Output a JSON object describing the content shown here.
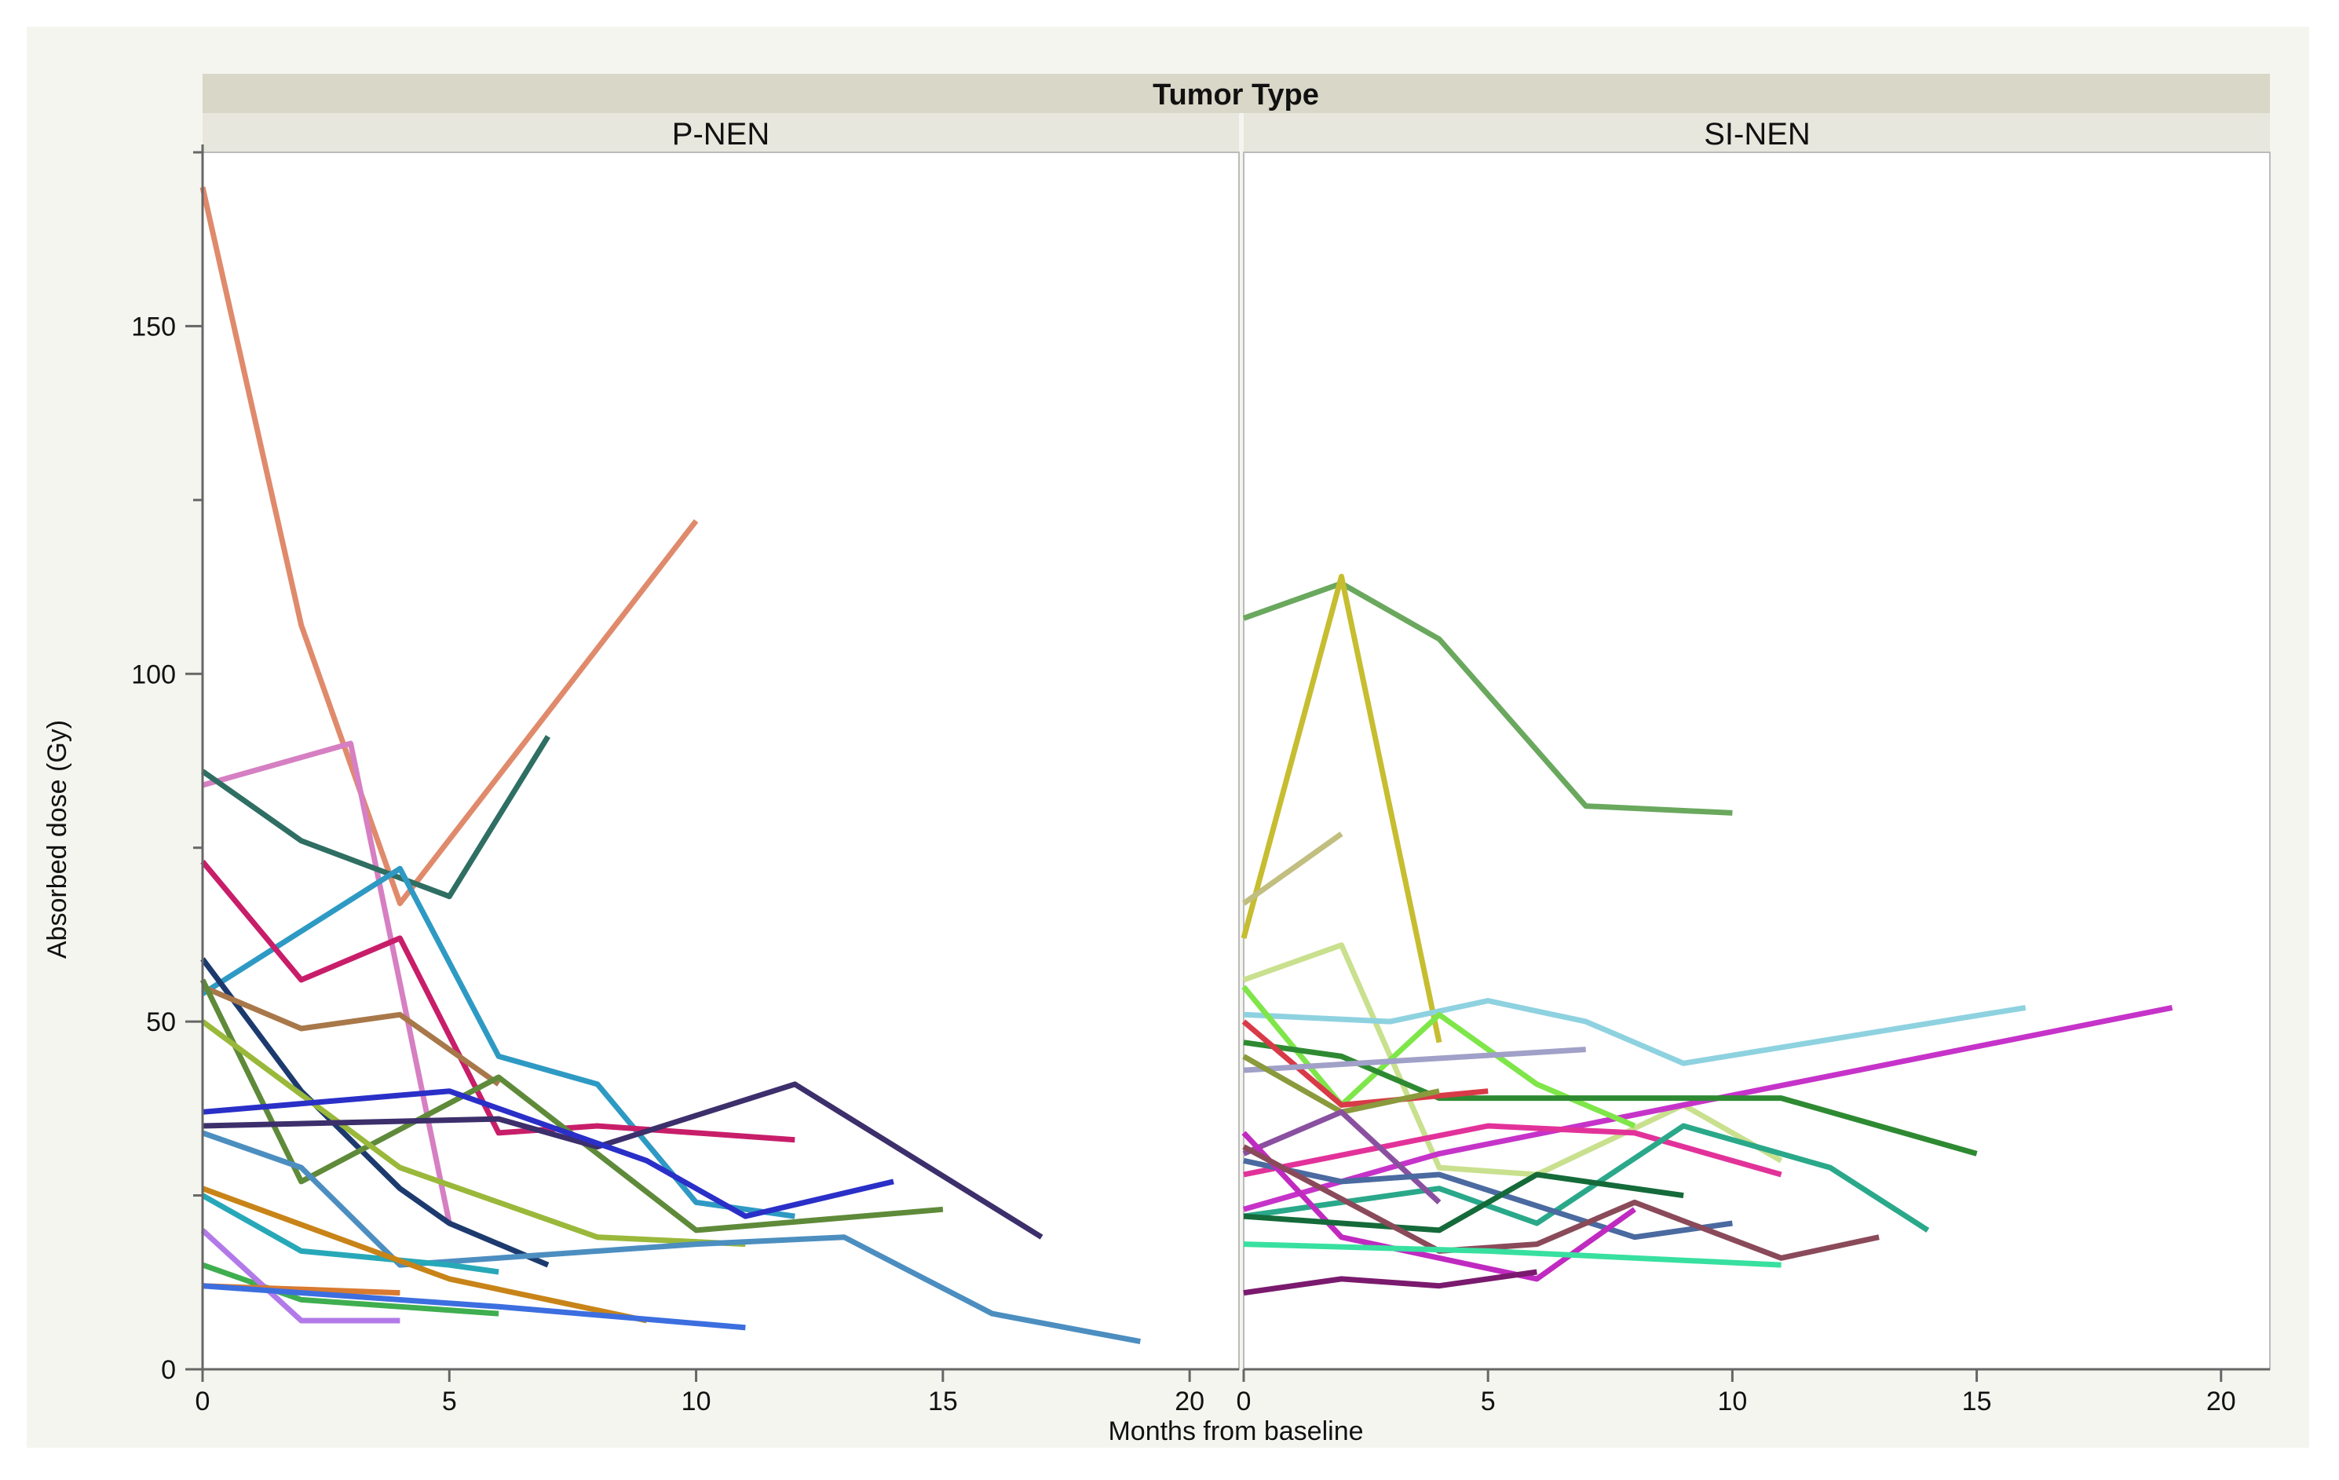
{
  "chart_data": {
    "type": "line",
    "title": "Tumor Type",
    "xlabel": "Months from baseline",
    "ylabel": "Absorbed dose (Gy)",
    "xlim": [
      0,
      21
    ],
    "ylim": [
      0,
      175
    ],
    "x_ticks": [
      0,
      5,
      10,
      15,
      20
    ],
    "y_ticks": [
      0,
      50,
      100,
      150
    ],
    "panels": [
      {
        "name": "P-NEN",
        "series": [
          {
            "color": "#e08a6c",
            "points": [
              [
                0,
                170
              ],
              [
                2,
                107
              ],
              [
                4,
                67
              ],
              [
                10,
                122
              ]
            ]
          },
          {
            "color": "#d67fc2",
            "points": [
              [
                0,
                84
              ],
              [
                3,
                90
              ],
              [
                5,
                21
              ]
            ]
          },
          {
            "color": "#2f6e63",
            "points": [
              [
                0,
                86
              ],
              [
                2,
                76
              ],
              [
                5,
                68
              ],
              [
                7,
                91
              ]
            ]
          },
          {
            "color": "#2e9ac4",
            "points": [
              [
                0,
                54
              ],
              [
                4,
                72
              ],
              [
                6,
                45
              ],
              [
                8,
                41
              ],
              [
                10,
                24
              ],
              [
                12,
                22
              ]
            ]
          },
          {
            "color": "#c81e6a",
            "points": [
              [
                0,
                73
              ],
              [
                2,
                56
              ],
              [
                4,
                62
              ],
              [
                6,
                34
              ],
              [
                8,
                35
              ],
              [
                12,
                33
              ]
            ]
          },
          {
            "color": "#1c3a6e",
            "points": [
              [
                0,
                59
              ],
              [
                2,
                40
              ],
              [
                4,
                26
              ],
              [
                5,
                21
              ],
              [
                7,
                15
              ]
            ]
          },
          {
            "color": "#a8784a",
            "points": [
              [
                0,
                55
              ],
              [
                2,
                49
              ],
              [
                4,
                51
              ],
              [
                6,
                41
              ]
            ]
          },
          {
            "color": "#5f8a3a",
            "points": [
              [
                0,
                56
              ],
              [
                2,
                27
              ],
              [
                6,
                42
              ],
              [
                10,
                20
              ],
              [
                15,
                23
              ]
            ]
          },
          {
            "color": "#9ab83a",
            "points": [
              [
                0,
                50
              ],
              [
                4,
                29
              ],
              [
                8,
                19
              ],
              [
                11,
                18
              ]
            ]
          },
          {
            "color": "#3c2f6b",
            "points": [
              [
                0,
                35
              ],
              [
                6,
                36
              ],
              [
                8,
                32
              ],
              [
                12,
                41
              ],
              [
                17,
                19
              ]
            ]
          },
          {
            "color": "#2a2fc8",
            "points": [
              [
                0,
                37
              ],
              [
                5,
                40
              ],
              [
                9,
                30
              ],
              [
                11,
                22
              ],
              [
                14,
                27
              ]
            ]
          },
          {
            "color": "#4c8ec0",
            "points": [
              [
                0,
                34
              ],
              [
                2,
                29
              ],
              [
                4,
                15
              ],
              [
                10,
                18
              ],
              [
                13,
                19
              ],
              [
                16,
                8
              ],
              [
                19,
                4
              ]
            ]
          },
          {
            "color": "#27a8b8",
            "points": [
              [
                0,
                25
              ],
              [
                2,
                17
              ],
              [
                5,
                15
              ],
              [
                6,
                14
              ]
            ]
          },
          {
            "color": "#c88418",
            "points": [
              [
                0,
                26
              ],
              [
                5,
                13
              ],
              [
                9,
                7
              ]
            ]
          },
          {
            "color": "#3fae50",
            "points": [
              [
                0,
                15
              ],
              [
                2,
                10
              ],
              [
                6,
                8
              ]
            ]
          },
          {
            "color": "#b27ae8",
            "points": [
              [
                0,
                20
              ],
              [
                2,
                7
              ],
              [
                4,
                7
              ]
            ]
          },
          {
            "color": "#d87a30",
            "points": [
              [
                0,
                12
              ],
              [
                4,
                11
              ]
            ]
          },
          {
            "color": "#3c6ee0",
            "points": [
              [
                0,
                12
              ],
              [
                6,
                9
              ],
              [
                11,
                6
              ]
            ]
          }
        ]
      },
      {
        "name": "SI-NEN",
        "series": [
          {
            "color": "#6aa85e",
            "points": [
              [
                0,
                108
              ],
              [
                2,
                113
              ],
              [
                4,
                105
              ],
              [
                7,
                81
              ],
              [
                10,
                80
              ]
            ]
          },
          {
            "color": "#c6bd30",
            "points": [
              [
                0,
                62
              ],
              [
                2,
                114
              ],
              [
                4,
                47
              ]
            ]
          },
          {
            "color": "#c2be80",
            "points": [
              [
                0,
                67
              ],
              [
                2,
                77
              ]
            ]
          },
          {
            "color": "#c9e08e",
            "points": [
              [
                0,
                56
              ],
              [
                2,
                61
              ],
              [
                4,
                29
              ],
              [
                6,
                28
              ],
              [
                9,
                38
              ],
              [
                11,
                30
              ]
            ]
          },
          {
            "color": "#8ed2e0",
            "points": [
              [
                0,
                51
              ],
              [
                3,
                50
              ],
              [
                5,
                53
              ],
              [
                7,
                50
              ],
              [
                9,
                44
              ],
              [
                16,
                52
              ]
            ]
          },
          {
            "color": "#c633c9",
            "points": [
              [
                0,
                23
              ],
              [
                4,
                31
              ],
              [
                19,
                52
              ]
            ]
          },
          {
            "color": "#7fe64a",
            "points": [
              [
                0,
                55
              ],
              [
                2,
                38
              ],
              [
                4,
                51
              ],
              [
                6,
                41
              ],
              [
                8,
                35
              ]
            ]
          },
          {
            "color": "#2e8a32",
            "points": [
              [
                0,
                47
              ],
              [
                2,
                45
              ],
              [
                4,
                39
              ],
              [
                11,
                39
              ],
              [
                15,
                31
              ]
            ]
          },
          {
            "color": "#d83a48",
            "points": [
              [
                0,
                50
              ],
              [
                2,
                38
              ],
              [
                5,
                40
              ]
            ]
          },
          {
            "color": "#a0a0c8",
            "points": [
              [
                0,
                43
              ],
              [
                7,
                46
              ]
            ]
          },
          {
            "color": "#8a9a3c",
            "points": [
              [
                0,
                45
              ],
              [
                2,
                37
              ],
              [
                4,
                40
              ]
            ]
          },
          {
            "color": "#e2329a",
            "points": [
              [
                0,
                28
              ],
              [
                5,
                35
              ],
              [
                8,
                34
              ],
              [
                11,
                28
              ]
            ]
          },
          {
            "color": "#2aa88a",
            "points": [
              [
                0,
                22
              ],
              [
                4,
                26
              ],
              [
                6,
                21
              ],
              [
                9,
                35
              ],
              [
                12,
                29
              ],
              [
                14,
                20
              ]
            ]
          },
          {
            "color": "#8a50a0",
            "points": [
              [
                0,
                31
              ],
              [
                2,
                37
              ],
              [
                4,
                24
              ]
            ]
          },
          {
            "color": "#4a6aa0",
            "points": [
              [
                0,
                30
              ],
              [
                2,
                27
              ],
              [
                4,
                28
              ],
              [
                8,
                19
              ],
              [
                10,
                21
              ]
            ]
          },
          {
            "color": "#c02ac0",
            "points": [
              [
                0,
                34
              ],
              [
                2,
                19
              ],
              [
                6,
                13
              ],
              [
                8,
                23
              ]
            ]
          },
          {
            "color": "#156a3a",
            "points": [
              [
                0,
                22
              ],
              [
                4,
                20
              ],
              [
                6,
                28
              ],
              [
                9,
                25
              ]
            ]
          },
          {
            "color": "#8a4a5a",
            "points": [
              [
                0,
                32
              ],
              [
                4,
                17
              ],
              [
                6,
                18
              ],
              [
                8,
                24
              ],
              [
                11,
                16
              ],
              [
                13,
                19
              ]
            ]
          },
          {
            "color": "#38e0a0",
            "points": [
              [
                0,
                18
              ],
              [
                5,
                17
              ],
              [
                11,
                15
              ]
            ]
          },
          {
            "color": "#7a1a6e",
            "points": [
              [
                0,
                11
              ],
              [
                2,
                13
              ],
              [
                4,
                12
              ],
              [
                6,
                14
              ]
            ]
          }
        ]
      }
    ]
  }
}
